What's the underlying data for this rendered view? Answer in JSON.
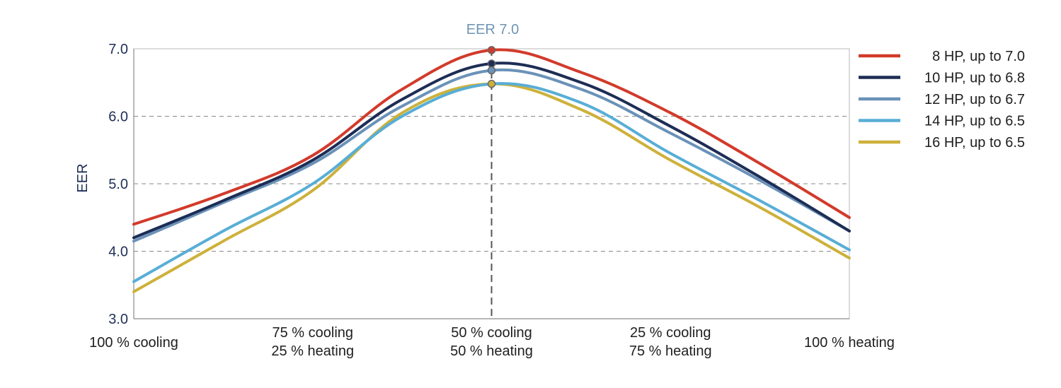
{
  "chart_data": {
    "type": "line",
    "title": "",
    "xlabel": "",
    "ylabel": "EER",
    "ylim": [
      3.0,
      7.0
    ],
    "y_ticks": [
      "7.0",
      "6.0",
      "5.0",
      "4.0",
      "3.0"
    ],
    "grid": "horizontal dashed",
    "legend_position": "right",
    "x": [
      0,
      25,
      50,
      75,
      100
    ],
    "x_tick_labels": [
      [
        "100 % cooling"
      ],
      [
        "75 % cooling",
        "25 % heating"
      ],
      [
        "50 % cooling",
        "50 % heating"
      ],
      [
        "25 % cooling",
        "75 % heating"
      ],
      [
        "100 % heating"
      ]
    ],
    "peak_annotation": "EER 7.0",
    "series": [
      {
        "name": " 8 HP, up to 7.0",
        "color": "#d23a2b",
        "x": [
          0,
          12.5,
          25,
          37.5,
          50,
          62.5,
          75,
          87.5,
          100
        ],
        "values": [
          4.4,
          4.85,
          5.42,
          6.4,
          6.98,
          6.65,
          6.05,
          5.3,
          4.5
        ]
      },
      {
        "name": "10 HP, up to 6.8",
        "color": "#1d2d55",
        "x": [
          0,
          12.5,
          25,
          37.5,
          50,
          62.5,
          75,
          87.5,
          100
        ],
        "values": [
          4.2,
          4.75,
          5.35,
          6.25,
          6.78,
          6.5,
          5.85,
          5.1,
          4.3
        ]
      },
      {
        "name": "12 HP, up to 6.7",
        "color": "#6b92b8",
        "x": [
          0,
          12.5,
          25,
          37.5,
          50,
          62.5,
          75,
          87.5,
          100
        ],
        "values": [
          4.15,
          4.72,
          5.3,
          6.15,
          6.68,
          6.4,
          5.75,
          5.05,
          4.3
        ]
      },
      {
        "name": "14 HP, up to 6.5",
        "color": "#58aed6",
        "x": [
          0,
          12.5,
          25,
          37.5,
          50,
          62.5,
          75,
          87.5,
          100
        ],
        "values": [
          3.55,
          4.3,
          5.0,
          6.0,
          6.48,
          6.2,
          5.45,
          4.75,
          4.02
        ]
      },
      {
        "name": "16 HP, up to 6.5",
        "color": "#cdb13a",
        "x": [
          0,
          12.5,
          25,
          37.5,
          50,
          62.5,
          75,
          87.5,
          100
        ],
        "values": [
          3.4,
          4.15,
          4.9,
          6.05,
          6.48,
          6.1,
          5.35,
          4.65,
          3.9
        ]
      }
    ],
    "peak_markers": [
      {
        "series": 0,
        "x": 50,
        "y": 6.98
      },
      {
        "series": 1,
        "x": 50,
        "y": 6.78
      },
      {
        "series": 2,
        "x": 50,
        "y": 6.68
      },
      {
        "series": 4,
        "x": 50,
        "y": 6.48
      }
    ]
  }
}
